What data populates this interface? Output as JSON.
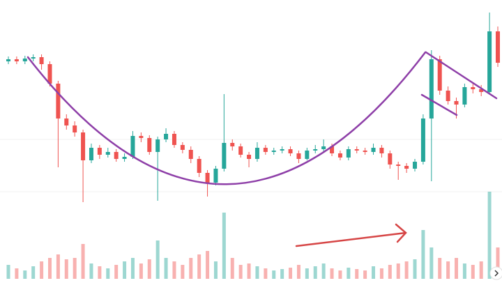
{
  "chart_data": {
    "type": "candlestick",
    "open": [
      212,
      215,
      212,
      216,
      218,
      208,
      180,
      130,
      120,
      110,
      70,
      88,
      78,
      82,
      72,
      75,
      105,
      102,
      82,
      100,
      108,
      92,
      85,
      72,
      52,
      38,
      58,
      95,
      90,
      78,
      72,
      88,
      82,
      84,
      86,
      80,
      72,
      84,
      86,
      90,
      80,
      74,
      86,
      84,
      82,
      88,
      80,
      64,
      62,
      58,
      68,
      130,
      215,
      170,
      155,
      150,
      175,
      172,
      168,
      255
    ],
    "high": [
      219,
      219,
      220,
      222,
      222,
      212,
      184,
      136,
      126,
      114,
      94,
      92,
      88,
      86,
      80,
      112,
      110,
      106,
      104,
      116,
      112,
      96,
      90,
      76,
      56,
      62,
      165,
      100,
      94,
      82,
      96,
      92,
      88,
      90,
      90,
      84,
      88,
      92,
      100,
      94,
      84,
      90,
      90,
      88,
      94,
      92,
      84,
      68,
      66,
      72,
      136,
      228,
      220,
      176,
      160,
      180,
      180,
      178,
      282,
      262
    ],
    "low": [
      208,
      208,
      208,
      212,
      200,
      176,
      60,
      114,
      104,
      10,
      66,
      72,
      74,
      68,
      68,
      72,
      96,
      78,
      12,
      96,
      88,
      80,
      66,
      46,
      18,
      34,
      54,
      84,
      74,
      60,
      68,
      78,
      78,
      80,
      76,
      66,
      70,
      80,
      82,
      76,
      70,
      70,
      80,
      78,
      78,
      74,
      58,
      42,
      52,
      54,
      64,
      40,
      164,
      150,
      130,
      146,
      166,
      162,
      164,
      204
    ],
    "close": [
      215,
      212,
      216,
      218,
      208,
      180,
      130,
      120,
      110,
      70,
      88,
      78,
      82,
      72,
      75,
      105,
      102,
      82,
      100,
      108,
      92,
      85,
      72,
      52,
      38,
      58,
      95,
      90,
      78,
      72,
      88,
      82,
      84,
      86,
      80,
      72,
      84,
      86,
      90,
      80,
      74,
      86,
      84,
      82,
      88,
      80,
      64,
      62,
      58,
      68,
      130,
      215,
      170,
      155,
      150,
      175,
      172,
      168,
      255,
      210
    ],
    "volume": [
      20,
      15,
      12,
      18,
      25,
      30,
      35,
      28,
      30,
      50,
      22,
      18,
      15,
      20,
      25,
      30,
      22,
      28,
      55,
      30,
      25,
      20,
      30,
      35,
      40,
      25,
      95,
      30,
      20,
      22,
      18,
      15,
      12,
      14,
      16,
      20,
      15,
      18,
      22,
      15,
      12,
      16,
      14,
      12,
      18,
      15,
      20,
      22,
      25,
      28,
      70,
      45,
      30,
      25,
      30,
      22,
      20,
      25,
      125,
      45
    ],
    "ylim": [
      0,
      300
    ],
    "volume_ylim": [
      0,
      140
    ],
    "up_color": "#26a69a",
    "down_color": "#ef5350"
  }
}
